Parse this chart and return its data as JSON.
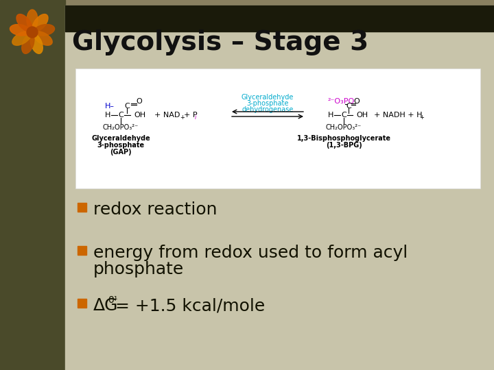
{
  "title": "Glycolysis – Stage 3",
  "title_fontsize": 28,
  "title_color": "#111111",
  "bg_color": "#c8c4aa",
  "slide_bg_left": "#5a5a3a",
  "header_dark_color": "#1a1a0a",
  "bullet_color": "#cc6600",
  "bullet_text_color": "#111100",
  "bullets": [
    "redox reaction",
    "energy from redox used to form acyl\n phosphate",
    "ΔG⁰¹= +1.5 kcal/mole"
  ],
  "bullet_fontsize": 18,
  "diagram_box_color": "#ffffff"
}
